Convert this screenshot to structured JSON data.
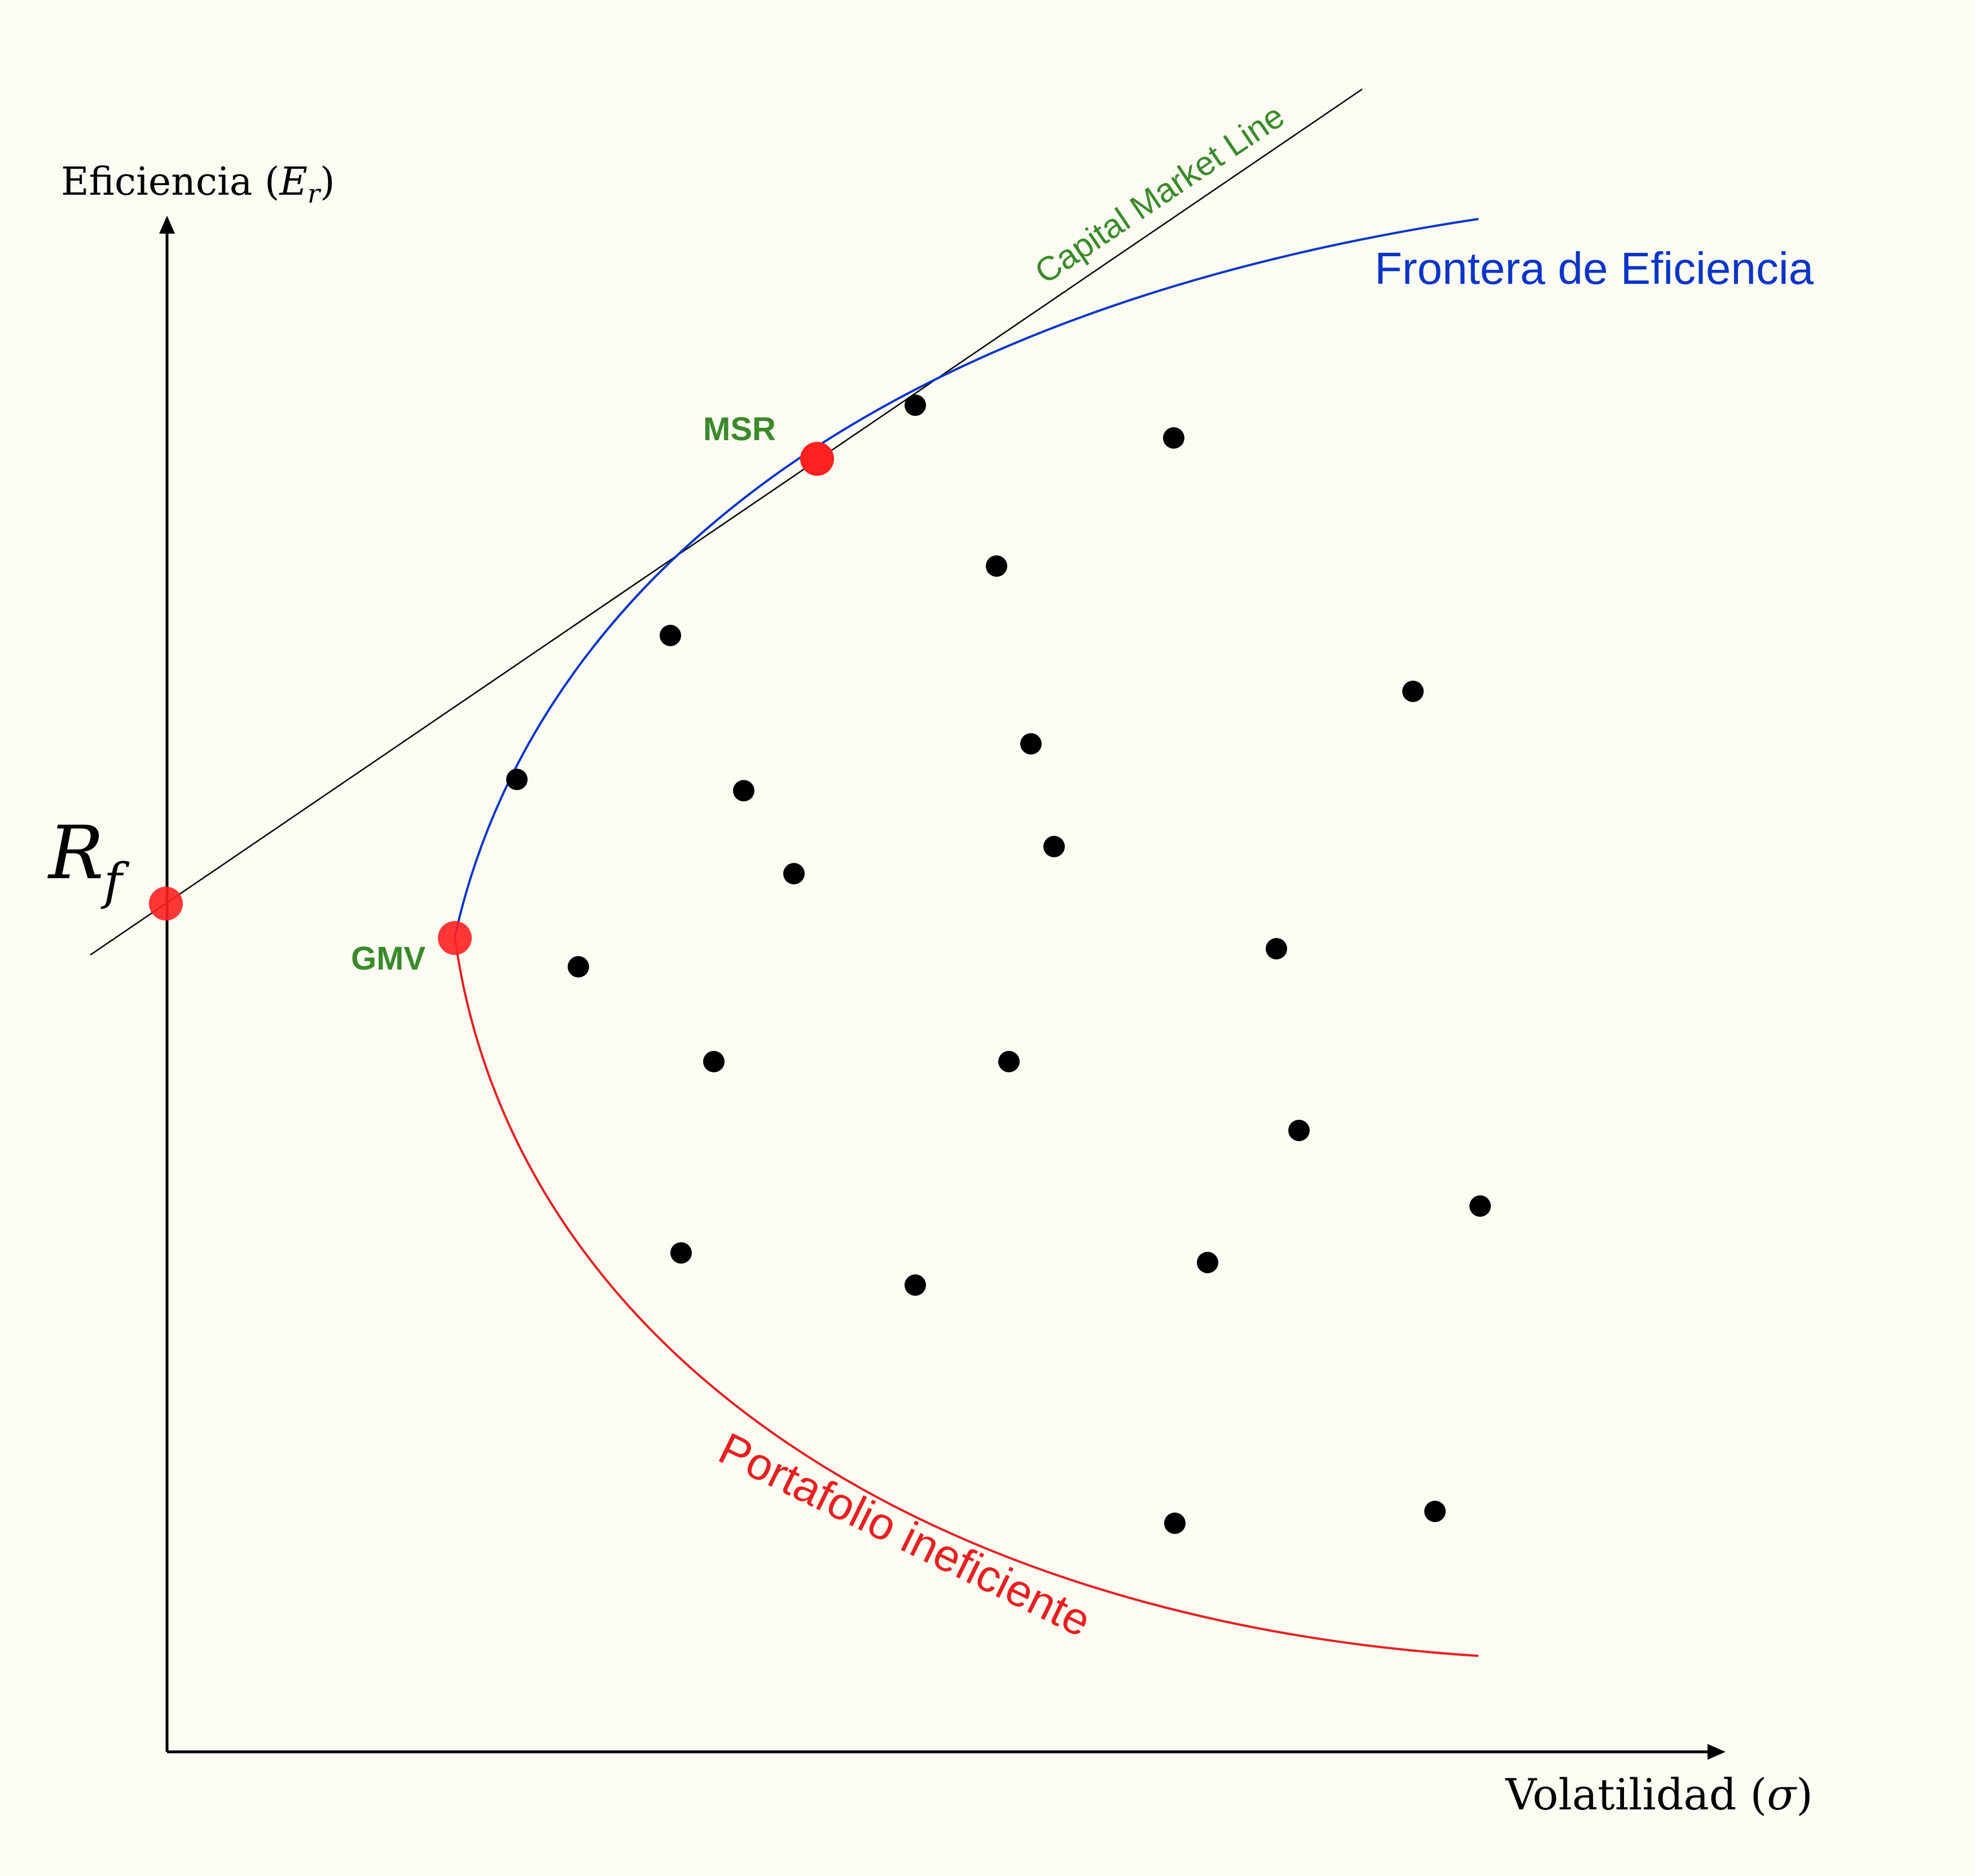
{
  "diagram": {
    "y_axis_label": "Eficiencia",
    "y_axis_symbol": "E",
    "y_axis_subscript": "r",
    "x_axis_label": "Volatilidad",
    "x_axis_symbol": "σ",
    "rf_label": "R",
    "rf_subscript": "f",
    "cml_label": "Capital Market Line",
    "frontier_label": "Frontera de Eficiencia",
    "inefficient_label": "Portafolio ineficiente",
    "msr_label": "MSR",
    "gmv_label": "GMV"
  },
  "colors": {
    "background": "#fdfcf3",
    "axis": "#000000",
    "cml_line": "#000000",
    "cml_text": "#3a8a2a",
    "frontier": "#0a35c8",
    "inefficient": "#e62020",
    "key_point": "#ff2020",
    "portfolio_dot": "#000000",
    "point_label": "#3a8a2a"
  }
}
